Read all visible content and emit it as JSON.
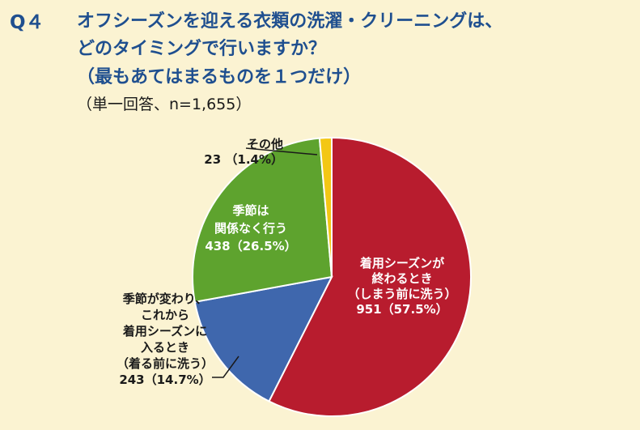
{
  "question": {
    "number": "Q４",
    "line1": "オフシーズンを迎える衣類の洗濯・クリーニングは、",
    "line2": "どのタイミングで行いますか？",
    "line3": "（最もあてはまるものを１つだけ）"
  },
  "meta": "（単一回答、n=1,655）",
  "chart_data": {
    "type": "pie",
    "start": "12 o'clock",
    "direction": "clockwise",
    "slices": [
      {
        "label": [
          "着用シーズンが",
          "終わるとき",
          "（しまう前に洗う）"
        ],
        "count": "951",
        "pct": "（57.5%）",
        "value": 57.5,
        "color": "#b81c2e"
      },
      {
        "label": [
          "季節が変わり、",
          "これから",
          "着用シーズンに",
          "入るとき",
          "（着る前に洗う）"
        ],
        "count": "243",
        "pct": "（14.7%）",
        "value": 14.7,
        "color": "#3f67ad"
      },
      {
        "label": [
          "季節は",
          "関係なく行う"
        ],
        "count": "438",
        "pct": "（26.5%）",
        "value": 26.5,
        "color": "#5ea32e"
      },
      {
        "label": [
          "その他"
        ],
        "count": "23",
        "pct": "（1.4%）",
        "value": 1.4,
        "color": "#f3c714"
      }
    ]
  }
}
